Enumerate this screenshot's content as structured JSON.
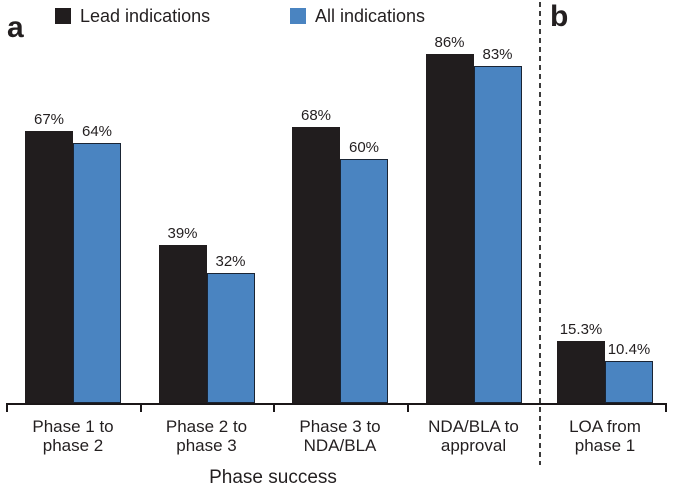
{
  "figure": {
    "panel_labels": {
      "left": "a",
      "right": "b"
    }
  },
  "chart_data": {
    "type": "bar",
    "title": "",
    "xlabel": "Phase success",
    "ylabel": "",
    "ylim": [
      0,
      100
    ],
    "grid": false,
    "legend_position": "top",
    "categories": [
      [
        "Phase 1 to",
        "phase 2"
      ],
      [
        "Phase 2 to",
        "phase 3"
      ],
      [
        "Phase 3 to",
        "NDA/BLA"
      ],
      [
        "NDA/BLA to",
        "approval"
      ],
      [
        "LOA from",
        "phase 1"
      ]
    ],
    "panels": [
      {
        "label": "a",
        "category_indexes": [
          0,
          1,
          2,
          3
        ]
      },
      {
        "label": "b",
        "category_indexes": [
          4
        ]
      }
    ],
    "series": [
      {
        "name": "Lead indications",
        "color": "#211d1e",
        "values": [
          67,
          39,
          68,
          86,
          15.3
        ],
        "value_labels": [
          "67%",
          "39%",
          "68%",
          "86%",
          "15.3%"
        ]
      },
      {
        "name": "All indications",
        "color": "#4a84c1",
        "border_color": "#1a2433",
        "values": [
          64,
          32,
          60,
          83,
          10.4
        ],
        "value_labels": [
          "64%",
          "32%",
          "60%",
          "83%",
          "10.4%"
        ]
      }
    ]
  }
}
